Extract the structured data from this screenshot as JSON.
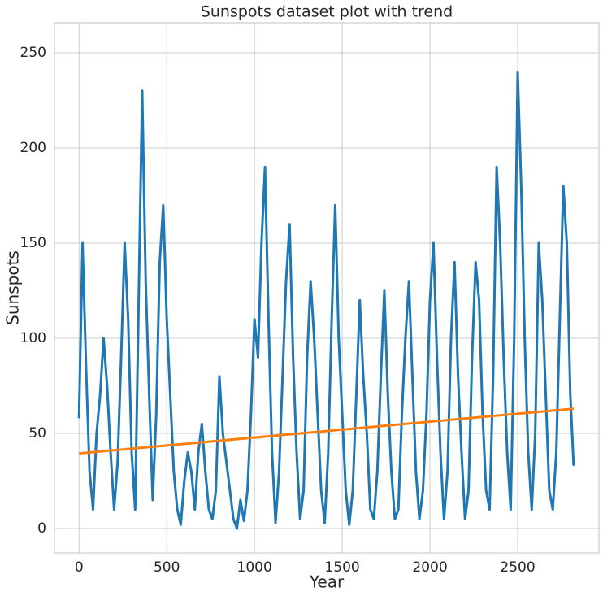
{
  "chart_data": {
    "type": "line",
    "title": "Sunspots dataset plot with trend",
    "x_label": "Year",
    "y_label": "Sunspots",
    "xlim": [
      -140,
      2963
    ],
    "ylim": [
      -12.8,
      265.8
    ],
    "xticks": [
      0,
      500,
      1000,
      1500,
      2000,
      2500
    ],
    "yticks": [
      0,
      50,
      100,
      150,
      200,
      250
    ],
    "grid": true,
    "series": [
      {
        "color": "#1f77b4",
        "x": [
          0,
          20,
          40,
          60,
          80,
          100,
          120,
          140,
          160,
          180,
          200,
          220,
          240,
          260,
          280,
          300,
          320,
          340,
          360,
          380,
          400,
          420,
          440,
          460,
          480,
          500,
          520,
          540,
          560,
          580,
          600,
          620,
          640,
          660,
          680,
          700,
          720,
          740,
          760,
          780,
          800,
          820,
          840,
          860,
          880,
          900,
          920,
          940,
          960,
          980,
          1000,
          1020,
          1040,
          1060,
          1080,
          1100,
          1120,
          1140,
          1160,
          1180,
          1200,
          1220,
          1240,
          1260,
          1280,
          1300,
          1320,
          1340,
          1360,
          1380,
          1400,
          1420,
          1440,
          1460,
          1480,
          1500,
          1520,
          1540,
          1560,
          1580,
          1600,
          1620,
          1640,
          1660,
          1680,
          1700,
          1720,
          1740,
          1760,
          1780,
          1800,
          1820,
          1840,
          1860,
          1880,
          1900,
          1920,
          1940,
          1960,
          1980,
          2000,
          2020,
          2040,
          2060,
          2080,
          2100,
          2120,
          2140,
          2160,
          2180,
          2200,
          2220,
          2240,
          2260,
          2280,
          2300,
          2320,
          2340,
          2360,
          2380,
          2400,
          2420,
          2440,
          2460,
          2480,
          2500,
          2520,
          2540,
          2560,
          2580,
          2600,
          2620,
          2640,
          2660,
          2680,
          2700,
          2720,
          2740,
          2760,
          2780,
          2800,
          2819
        ],
        "values": [
          58,
          150,
          85,
          30,
          10,
          50,
          70,
          100,
          75,
          40,
          10,
          35,
          90,
          150,
          110,
          40,
          10,
          120,
          230,
          130,
          70,
          15,
          60,
          140,
          170,
          110,
          70,
          30,
          10,
          2,
          25,
          40,
          30,
          10,
          40,
          55,
          30,
          10,
          5,
          20,
          80,
          50,
          35,
          20,
          5,
          0,
          15,
          4,
          20,
          60,
          110,
          90,
          150,
          190,
          110,
          40,
          3,
          30,
          80,
          130,
          160,
          90,
          40,
          5,
          20,
          90,
          130,
          100,
          60,
          20,
          3,
          40,
          110,
          170,
          100,
          60,
          20,
          2,
          20,
          70,
          120,
          80,
          50,
          10,
          5,
          30,
          80,
          125,
          70,
          30,
          5,
          10,
          60,
          100,
          130,
          80,
          30,
          5,
          20,
          60,
          120,
          150,
          90,
          40,
          5,
          30,
          100,
          140,
          80,
          40,
          5,
          20,
          90,
          140,
          120,
          60,
          20,
          10,
          80,
          190,
          150,
          90,
          40,
          10,
          100,
          240,
          180,
          100,
          40,
          10,
          50,
          150,
          120,
          70,
          20,
          10,
          40,
          110,
          180,
          150,
          70,
          33
        ]
      },
      {
        "color": "#ff7f0e",
        "x": [
          0,
          2819
        ],
        "values": [
          39.5,
          63
        ]
      }
    ]
  }
}
